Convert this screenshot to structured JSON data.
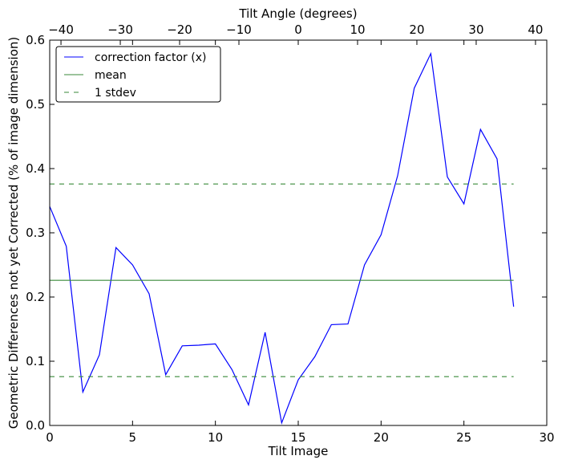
{
  "chart_data": {
    "type": "line",
    "xlabel": "Tilt Image",
    "ylabel": "Geometric Differences not yet Corrected (% of image dimension)",
    "x2label": "Tilt Angle (degrees)",
    "xlim": [
      0,
      30
    ],
    "ylim": [
      0,
      0.6
    ],
    "x2lim": [
      -41.9,
      41.9
    ],
    "xticks": [
      "0",
      "5",
      "10",
      "15",
      "20",
      "25",
      "30"
    ],
    "xtick_values": [
      0,
      5,
      10,
      15,
      20,
      25,
      30
    ],
    "yticks": [
      "0.0",
      "0.1",
      "0.2",
      "0.3",
      "0.4",
      "0.5",
      "0.6"
    ],
    "ytick_values": [
      0,
      0.1,
      0.2,
      0.3,
      0.4,
      0.5,
      0.6
    ],
    "x2ticks": [
      "−40",
      "−30",
      "−20",
      "−10",
      "0",
      "10",
      "20",
      "30",
      "40"
    ],
    "x2tick_values": [
      -40,
      -30,
      -20,
      -10,
      0,
      10,
      20,
      30,
      40
    ],
    "legend_position": "top-left",
    "series": [
      {
        "name": "correction factor (x)",
        "color": "#0000ff",
        "style": "solid",
        "x": [
          0,
          1,
          2,
          3,
          4,
          5,
          6,
          7,
          8,
          9,
          10,
          11,
          12,
          13,
          14,
          15,
          16,
          17,
          18,
          19,
          20,
          21,
          22,
          23,
          24,
          25,
          26,
          27,
          28
        ],
        "values": [
          0.341,
          0.279,
          0.052,
          0.11,
          0.277,
          0.25,
          0.205,
          0.079,
          0.124,
          0.125,
          0.127,
          0.087,
          0.032,
          0.145,
          0.004,
          0.071,
          0.107,
          0.157,
          0.158,
          0.25,
          0.297,
          0.389,
          0.525,
          0.579,
          0.387,
          0.345,
          0.461,
          0.415,
          0.185
        ]
      },
      {
        "name": "mean",
        "color": "#3a8a3a",
        "style": "solid",
        "x": [
          0,
          28
        ],
        "values": [
          0.226,
          0.226
        ]
      },
      {
        "name": "1 stdev",
        "color": "#3a8a3a",
        "style": "dashed",
        "x": [
          0,
          28
        ],
        "values": [
          0.376,
          0.376
        ],
        "values_lower": [
          0.076,
          0.076
        ]
      }
    ]
  }
}
